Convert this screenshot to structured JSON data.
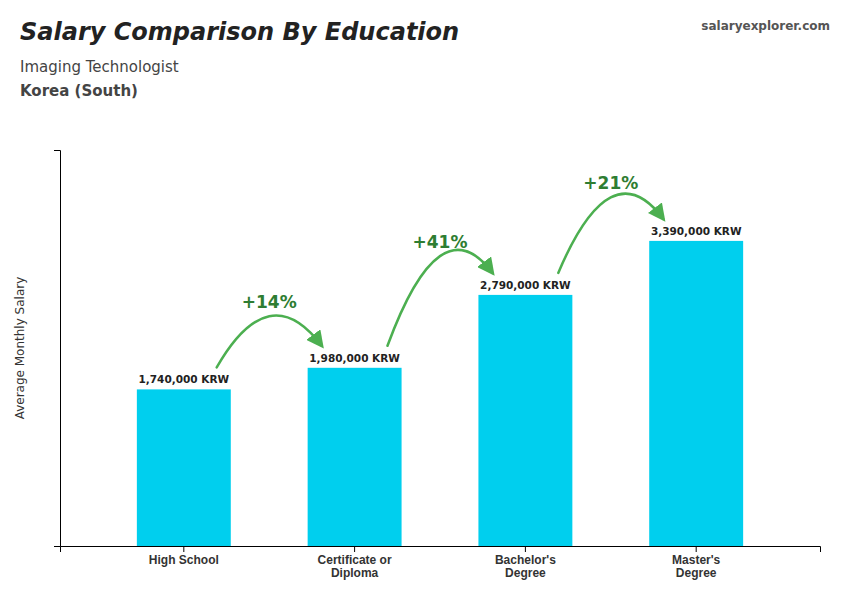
{
  "chart_data": {
    "type": "bar",
    "title": "Salary Comparison By Education",
    "subtitle": [
      "Imaging Technologist",
      "Korea (South)"
    ],
    "source": "salaryexplorer.com",
    "y_label": "Average Monthly Salary",
    "categories": [
      "High School",
      "Certificate or\nDiploma",
      "Bachelor's\nDegree",
      "Master's\nDegree"
    ],
    "values": [
      1740000,
      1980000,
      2790000,
      3390000
    ],
    "value_labels": [
      "1,740,000 KRW",
      "1,980,000 KRW",
      "2,790,000 KRW",
      "3,390,000 KRW"
    ],
    "data_labels": true,
    "annotations": [
      "+14%",
      "+41%",
      "+21%"
    ],
    "color": "#00cfee",
    "ylim": [
      0,
      4400000
    ],
    "yticks": [],
    "tick_labels": "x",
    "grid": false
  }
}
